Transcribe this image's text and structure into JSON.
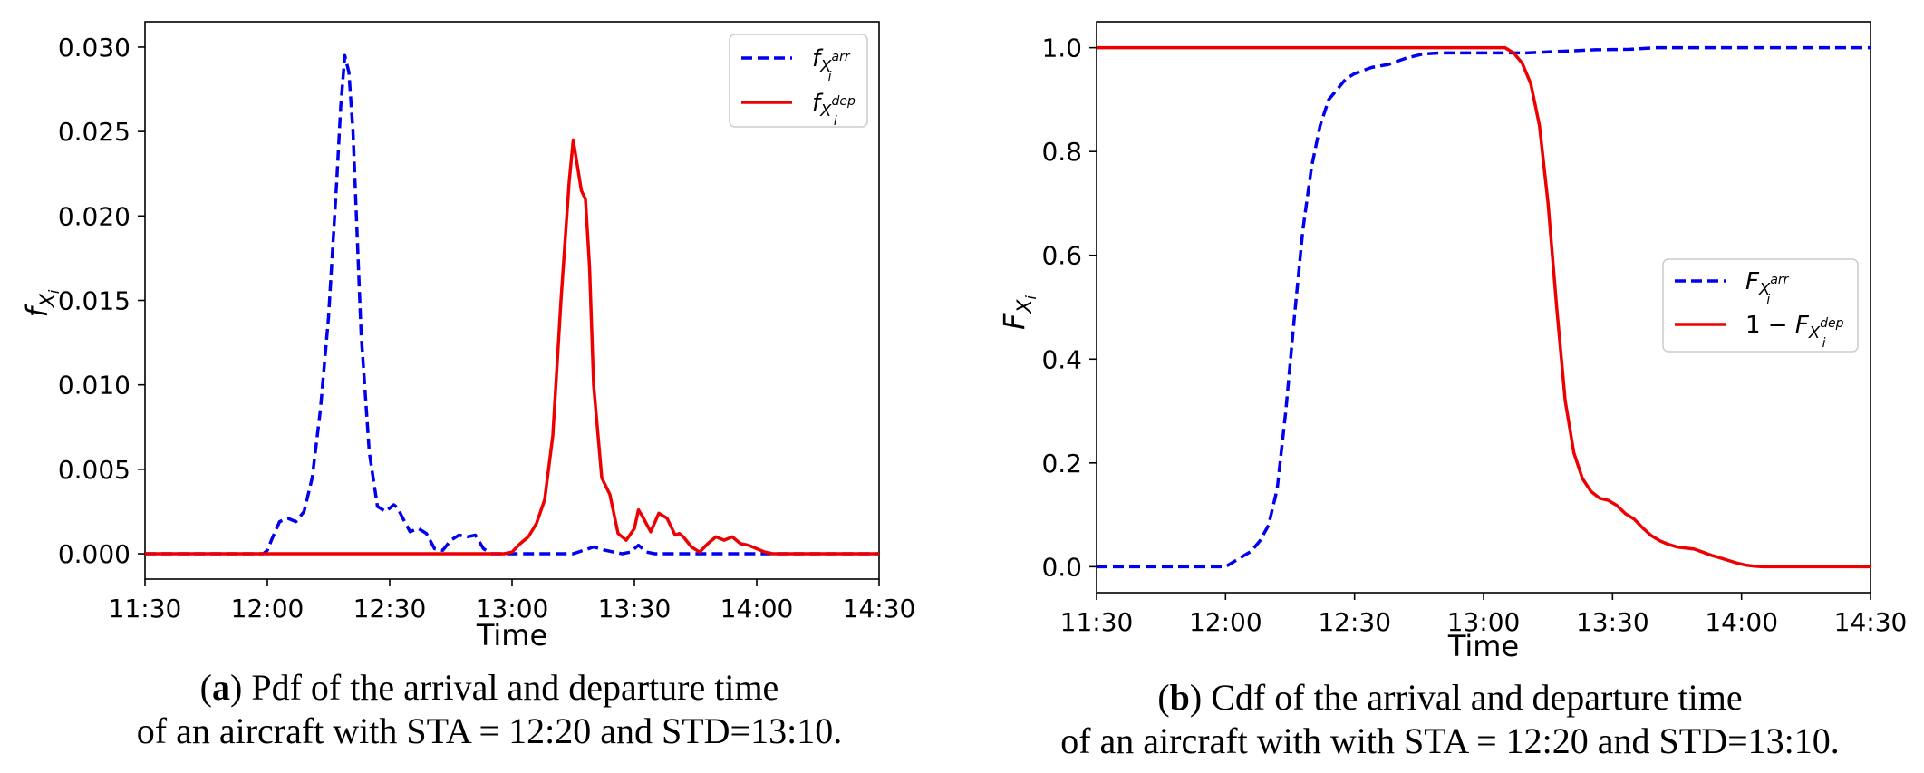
{
  "colors": {
    "arrival": "#0000ee",
    "departure": "#ee0000"
  },
  "chart_data": [
    {
      "type": "line",
      "xlabel": "Time",
      "ylabel": "f_{X_i}",
      "ylabel_main": "f",
      "ylabel_sub": "X",
      "ylabel_subsub": "i",
      "x_unit": "minutes from 11:30",
      "xlim": [
        0,
        180
      ],
      "ylim": [
        -0.0015,
        0.0315
      ],
      "x_ticks": [
        0,
        30,
        60,
        90,
        120,
        150,
        180
      ],
      "x_tick_labels": [
        "11:30",
        "12:00",
        "12:30",
        "13:00",
        "13:30",
        "14:00",
        "14:30"
      ],
      "y_ticks": [
        0.0,
        0.005,
        0.01,
        0.015,
        0.02,
        0.025,
        0.03
      ],
      "y_tick_labels": [
        "0.000",
        "0.005",
        "0.010",
        "0.015",
        "0.020",
        "0.025",
        "0.030"
      ],
      "legend_position": "top-right",
      "series": [
        {
          "name": "f_{X_i^arr}",
          "legend_main": "f",
          "legend_sub": "X",
          "legend_subsub": "i",
          "legend_sup": "arr",
          "style": "dashed",
          "color_key": "arrival",
          "x": [
            0,
            29,
            30,
            31,
            33,
            35,
            37,
            39,
            41,
            43,
            45,
            47,
            48,
            49,
            50,
            51,
            52,
            53,
            55,
            57,
            59,
            61,
            62,
            63,
            65,
            67,
            69,
            71,
            73,
            75,
            77,
            79,
            81,
            83,
            85,
            87,
            89,
            91,
            93,
            95,
            100,
            105,
            110,
            113,
            115,
            117,
            119,
            121,
            123,
            125,
            130,
            180
          ],
          "y": [
            0,
            0,
            0.0002,
            0.0008,
            0.0019,
            0.0021,
            0.0019,
            0.0025,
            0.0045,
            0.0085,
            0.014,
            0.022,
            0.0265,
            0.0295,
            0.0285,
            0.025,
            0.019,
            0.013,
            0.006,
            0.0028,
            0.0025,
            0.0029,
            0.0027,
            0.0022,
            0.0013,
            0.0015,
            0.0012,
            0.0003,
            0.0002,
            0.0008,
            0.0011,
            0.001,
            0.0011,
            0.0003,
            0,
            0,
            0,
            0,
            0,
            0,
            0,
            0,
            0.0004,
            0.0002,
            0.0001,
            0,
            0.0001,
            0.0005,
            0.0001,
            0,
            0,
            0
          ]
        },
        {
          "name": "f_{X_i^dep}",
          "legend_main": "f",
          "legend_sub": "X",
          "legend_subsub": "i",
          "legend_sup": "dep",
          "style": "solid",
          "color_key": "departure",
          "x": [
            0,
            88,
            90,
            92,
            94,
            96,
            98,
            100,
            102,
            104,
            105,
            106,
            107,
            108,
            109,
            110,
            112,
            114,
            116,
            118,
            120,
            121,
            122,
            124,
            126,
            128,
            130,
            131,
            132,
            134,
            136,
            138,
            140,
            142,
            144,
            146,
            148,
            150,
            152,
            154,
            156,
            157,
            158,
            159,
            160,
            180
          ],
          "y": [
            0,
            0,
            0.0001,
            0.0006,
            0.001,
            0.0018,
            0.0032,
            0.007,
            0.015,
            0.022,
            0.0245,
            0.023,
            0.0215,
            0.021,
            0.017,
            0.01,
            0.0045,
            0.0035,
            0.0012,
            0.0008,
            0.0015,
            0.0026,
            0.0022,
            0.0013,
            0.0024,
            0.0021,
            0.0011,
            0.0012,
            0.001,
            0.0004,
            0.0001,
            0.0006,
            0.001,
            0.0008,
            0.001,
            0.0006,
            0.0005,
            0.0003,
            0.0001,
            0,
            0,
            0,
            0,
            0,
            0,
            0
          ]
        }
      ],
      "caption_label": "a",
      "caption_text": ") Pdf of the arrival and departure time",
      "caption_line2": "of an aircraft with STA = 12:20 and STD=13:10."
    },
    {
      "type": "line",
      "xlabel": "Time",
      "ylabel": "F_{X_i}",
      "ylabel_main": "F",
      "ylabel_sub": "X",
      "ylabel_subsub": "i",
      "x_unit": "minutes from 11:30",
      "xlim": [
        0,
        180
      ],
      "ylim": [
        -0.05,
        1.05
      ],
      "x_ticks": [
        0,
        30,
        60,
        90,
        120,
        150,
        180
      ],
      "x_tick_labels": [
        "11:30",
        "12:00",
        "12:30",
        "13:00",
        "13:30",
        "14:00",
        "14:30"
      ],
      "y_ticks": [
        0.0,
        0.2,
        0.4,
        0.6,
        0.8,
        1.0
      ],
      "y_tick_labels": [
        "0.0",
        "0.2",
        "0.4",
        "0.6",
        "0.8",
        "1.0"
      ],
      "legend_position": "center-right",
      "series": [
        {
          "name": "F_{X_i^arr}",
          "legend_prefix": "",
          "legend_main": "F",
          "legend_sub": "X",
          "legend_subsub": "i",
          "legend_sup": "arr",
          "style": "dashed",
          "color_key": "arrival",
          "x": [
            0,
            30,
            32,
            34,
            36,
            38,
            40,
            42,
            44,
            46,
            48,
            50,
            52,
            54,
            56,
            58,
            60,
            64,
            68,
            72,
            76,
            80,
            84,
            88,
            92,
            96,
            100,
            108,
            116,
            124,
            130,
            140,
            160,
            180
          ],
          "y": [
            0,
            0,
            0.01,
            0.02,
            0.03,
            0.05,
            0.08,
            0.15,
            0.3,
            0.48,
            0.65,
            0.77,
            0.85,
            0.9,
            0.92,
            0.94,
            0.95,
            0.962,
            0.968,
            0.98,
            0.988,
            0.99,
            0.99,
            0.99,
            0.99,
            0.99,
            0.99,
            0.993,
            0.996,
            0.997,
            1.0,
            1.0,
            1.0,
            1.0
          ]
        },
        {
          "name": "1 − F_{X_i^dep}",
          "legend_prefix": "1 − ",
          "legend_main": "F",
          "legend_sub": "X",
          "legend_subsub": "i",
          "legend_sup": "dep",
          "style": "solid",
          "color_key": "departure",
          "x": [
            0,
            92,
            95,
            97,
            99,
            101,
            103,
            105,
            107,
            109,
            111,
            113,
            115,
            117,
            119,
            121,
            123,
            125,
            127,
            129,
            131,
            133,
            135,
            137,
            139,
            141,
            143,
            145,
            147,
            149,
            151,
            153,
            155,
            157,
            160,
            180
          ],
          "y": [
            1.0,
            1.0,
            1.0,
            0.99,
            0.97,
            0.93,
            0.85,
            0.7,
            0.5,
            0.32,
            0.22,
            0.17,
            0.145,
            0.132,
            0.128,
            0.118,
            0.102,
            0.092,
            0.075,
            0.06,
            0.05,
            0.043,
            0.038,
            0.036,
            0.034,
            0.028,
            0.022,
            0.017,
            0.012,
            0.007,
            0.003,
            0.001,
            0,
            0,
            0,
            0
          ]
        }
      ],
      "caption_label": "b",
      "caption_text": ") Cdf of the arrival and departure time",
      "caption_line2": "of an aircraft with with STA = 12:20 and STD=13:10."
    }
  ]
}
